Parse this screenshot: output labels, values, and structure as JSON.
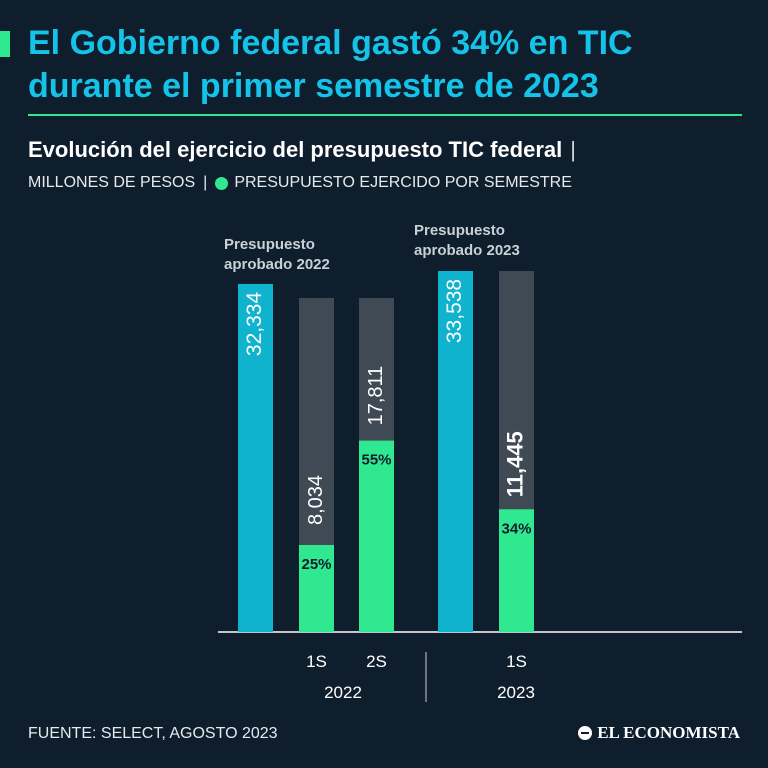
{
  "title": "El Gobierno federal gastó 34% en TIC durante el primer semestre de 2023",
  "subtitle": "Evolución del ejercicio del presupuesto TIC federal",
  "subtitle_separator": "|",
  "unit_label": "MILLONES DE PESOS",
  "unit_separator": "|",
  "legend_label": "PRESUPUESTO EJERCIDO POR SEMESTRE",
  "source": "FUENTE: SELECT, AGOSTO 2023",
  "publisher": "EL ECONOMISTA",
  "colors": {
    "background": "#0f1e2c",
    "approved": "#0fb3cd",
    "remaining": "#3f4a55",
    "executed": "#2fe88f",
    "title": "#15c2e8"
  },
  "chart_data": {
    "type": "bar",
    "units": "millones de pesos",
    "ylim": [
      0,
      33538
    ],
    "groups": [
      {
        "year": "2022",
        "approved_label": [
          "Presupuesto",
          "aprobado 2022"
        ],
        "approved": 32334,
        "approved_text": "32,334",
        "semesters": [
          {
            "label": "1S",
            "executed": 8034,
            "executed_text": "8,034",
            "percent": 25,
            "percent_text": "25%"
          },
          {
            "label": "2S",
            "executed": 17811,
            "executed_text": "17,811",
            "percent": 55,
            "percent_text": "55%"
          }
        ]
      },
      {
        "year": "2023",
        "approved_label": [
          "Presupuesto",
          "aprobado 2023"
        ],
        "approved": 33538,
        "approved_text": "33,538",
        "semesters": [
          {
            "label": "1S",
            "executed": 11445,
            "executed_text": "11,445",
            "percent": 34,
            "percent_text": "34%",
            "highlight": true
          }
        ]
      }
    ]
  }
}
